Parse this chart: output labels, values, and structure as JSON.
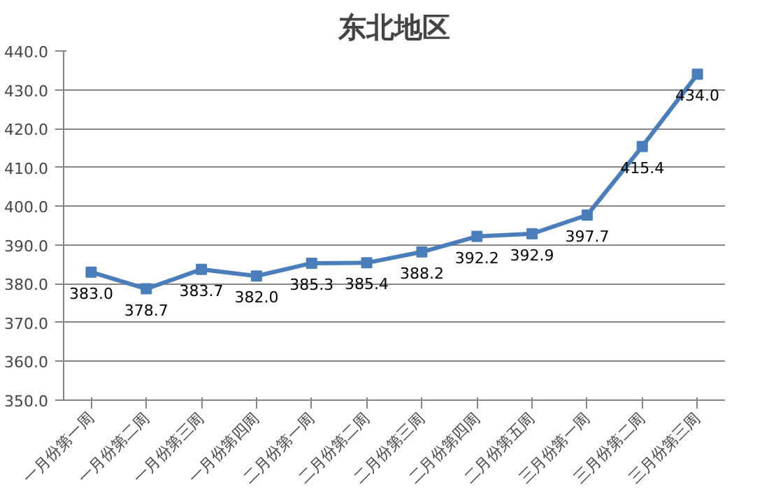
{
  "chart_data": {
    "type": "line",
    "title": "东北地区",
    "categories": [
      "一月份第一周",
      "一月份第二周",
      "一月份第三周",
      "一月份第四周",
      "二月份第一周",
      "二月份第二周",
      "二月份第三周",
      "二月份第四周",
      "二月份第五周",
      "三月份第一周",
      "三月份第二周",
      "三月份第三周"
    ],
    "series": [
      {
        "color": "#4a7ebb",
        "values": [
          383.0,
          378.7,
          383.7,
          382.0,
          385.3,
          385.4,
          388.2,
          392.2,
          392.9,
          397.7,
          415.4,
          434.0
        ],
        "value_labels": [
          "383.0",
          "378.7",
          "383.7",
          "382.0",
          "385.3",
          "385.4",
          "388.2",
          "392.2",
          "392.9",
          "397.7",
          "415.4",
          "434.0"
        ]
      }
    ],
    "ylim": [
      350,
      440
    ],
    "yticks": [
      {
        "value": 350,
        "label": "350.0"
      },
      {
        "value": 360,
        "label": "360.0"
      },
      {
        "value": 370,
        "label": "370.0"
      },
      {
        "value": 380,
        "label": "380.0"
      },
      {
        "value": 390,
        "label": "390.0"
      },
      {
        "value": 400,
        "label": "400.0"
      },
      {
        "value": 410,
        "label": "410.0"
      },
      {
        "value": 420,
        "label": "420.0"
      },
      {
        "value": 430,
        "label": "430.0"
      },
      {
        "value": 440,
        "label": "440.0"
      }
    ],
    "grid": "y",
    "marker": "square",
    "line_style": "solid"
  }
}
